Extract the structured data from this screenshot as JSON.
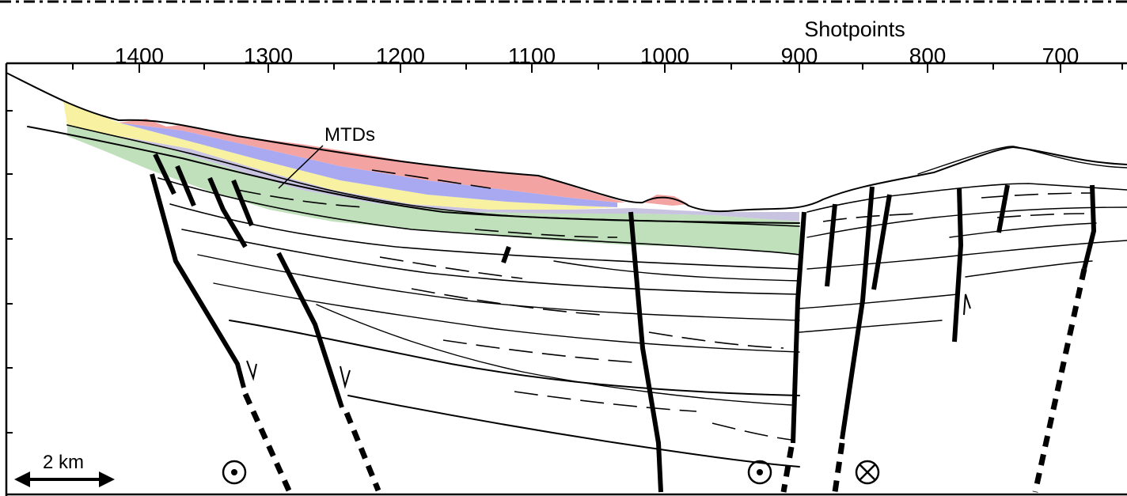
{
  "figure": {
    "axis_title": "Shotpoints",
    "shotpoint_ticks": [
      "1400",
      "1300",
      "1200",
      "1100",
      "1000",
      "900",
      "800",
      "700"
    ],
    "annotation_mtds": "MTDs",
    "scale_bar_label": "2 km",
    "symbols": {
      "out_of_page": "⊙",
      "into_page": "⊗"
    },
    "unit_colors": {
      "red_unit": "#f4a3a3",
      "blue_unit": "#a9a9f2",
      "yellow_unit": "#f7f1a1",
      "lavender_unit": "#c8c3e0",
      "green_unit": "#bfe0bb"
    }
  }
}
